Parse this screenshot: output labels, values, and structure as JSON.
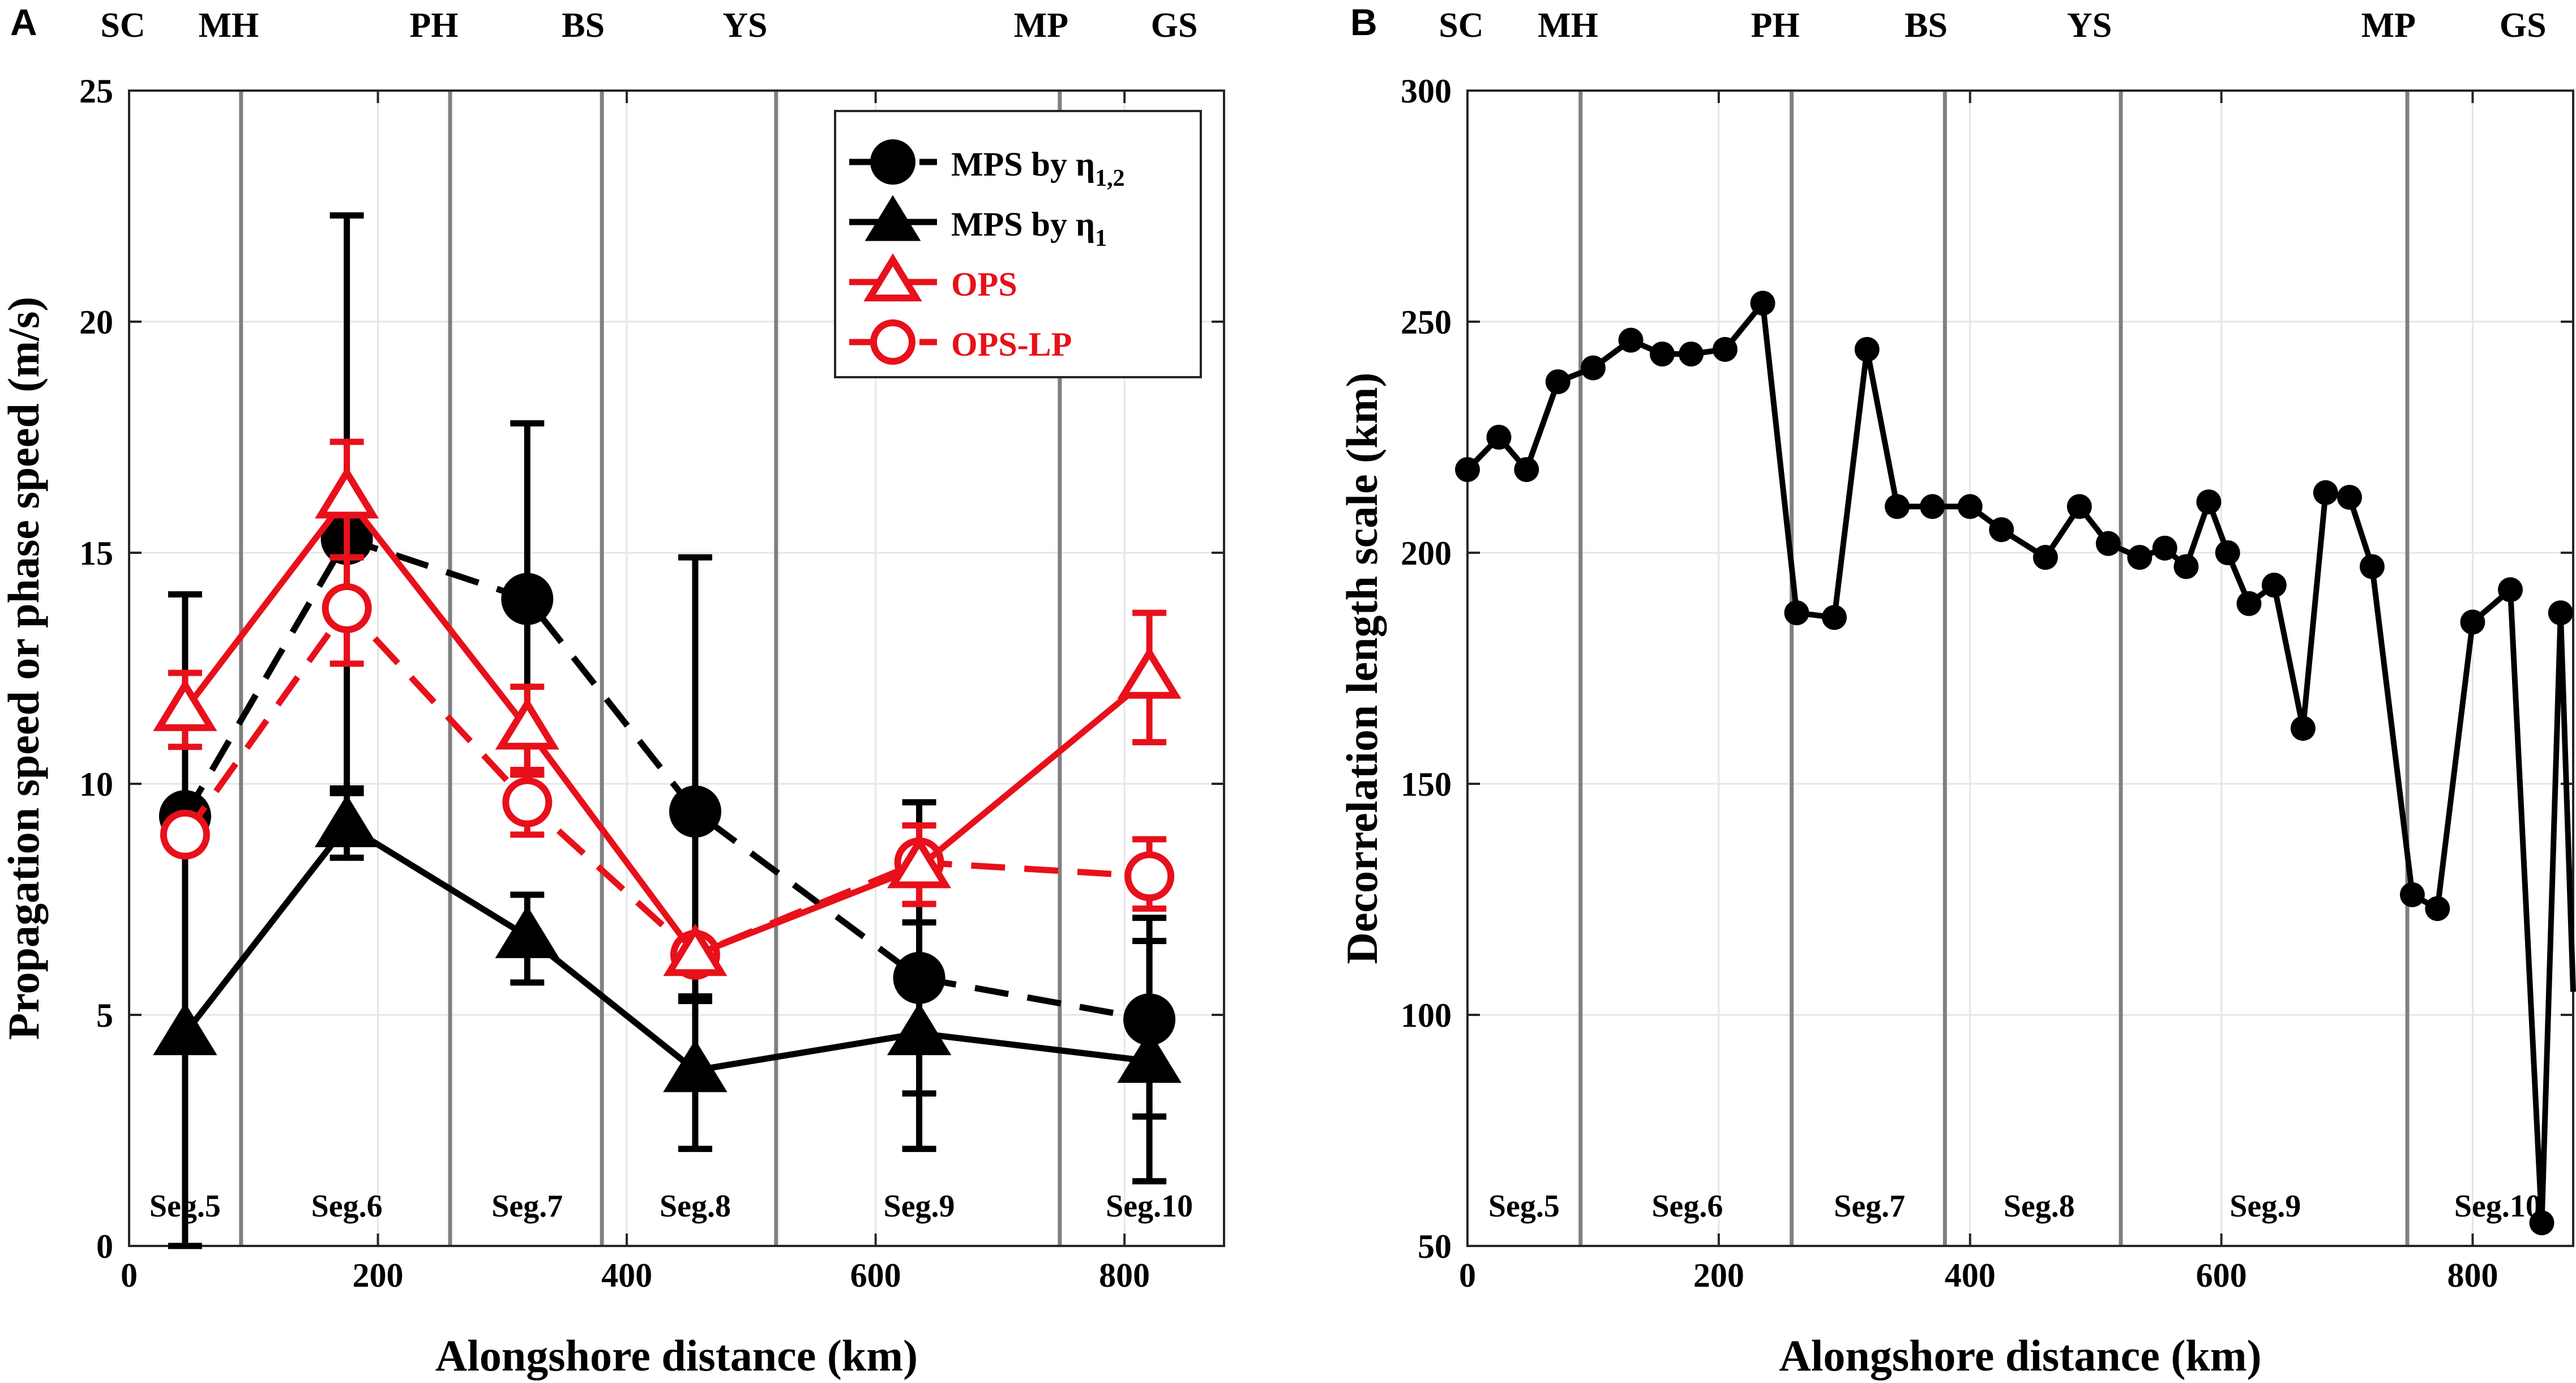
{
  "chart_data": [
    {
      "type": "line",
      "panel": "A",
      "xlabel": "Alongshore distance (km)",
      "ylabel": "Propagation speed or phase speed (m/s)",
      "xlim": [
        0,
        880
      ],
      "ylim": [
        0,
        25
      ],
      "xticks": [
        0,
        200,
        400,
        600,
        800
      ],
      "yticks": [
        0,
        5,
        10,
        15,
        20,
        25
      ],
      "grid": true,
      "legend_position": "top-right",
      "boundaries": [
        90,
        258,
        380,
        520,
        748
      ],
      "sites": [
        {
          "label": "SC",
          "x": -5
        },
        {
          "label": "MH",
          "x": 80
        },
        {
          "label": "PH",
          "x": 245
        },
        {
          "label": "BS",
          "x": 365
        },
        {
          "label": "YS",
          "x": 495
        },
        {
          "label": "MP",
          "x": 733
        },
        {
          "label": "GS",
          "x": 840
        }
      ],
      "segments": [
        {
          "label": "Seg.5",
          "x": 45
        },
        {
          "label": "Seg.6",
          "x": 175
        },
        {
          "label": "Seg.7",
          "x": 320
        },
        {
          "label": "Seg.8",
          "x": 455
        },
        {
          "label": "Seg.9",
          "x": 635
        },
        {
          "label": "Seg.10",
          "x": 820
        }
      ],
      "series": [
        {
          "name": "MPS by η1,2",
          "name_main": "MPS by η",
          "name_sub": "1,2",
          "color": "#000000",
          "line": "dashed",
          "marker": "circle",
          "fill": true,
          "x": [
            45,
            175,
            320,
            455,
            635,
            820
          ],
          "y": [
            9.3,
            15.3,
            14.0,
            9.4,
            5.8,
            4.9
          ],
          "err_low": [
            0.0,
            9.9,
            10.2,
            5.3,
            3.3,
            2.8
          ],
          "err_high": [
            14.1,
            22.3,
            17.8,
            14.9,
            9.6,
            7.1
          ]
        },
        {
          "name": "MPS by η1",
          "name_main": "MPS by η",
          "name_sub": "1",
          "color": "#000000",
          "line": "solid",
          "marker": "triangle",
          "fill": true,
          "x": [
            45,
            175,
            320,
            455,
            635,
            820
          ],
          "y": [
            4.6,
            9.1,
            6.7,
            3.8,
            4.6,
            4.0
          ],
          "err_low": [
            4.6,
            8.4,
            5.7,
            2.1,
            2.1,
            1.4
          ],
          "err_high": [
            4.6,
            9.8,
            7.6,
            5.4,
            7.0,
            6.6
          ]
        },
        {
          "name": "OPS",
          "color": "#e8101a",
          "line": "solid",
          "marker": "triangle",
          "fill": false,
          "x": [
            45,
            175,
            320,
            455,
            635,
            820
          ],
          "y": [
            11.6,
            16.2,
            11.2,
            6.3,
            8.2,
            12.3
          ],
          "err_low": [
            10.8,
            14.9,
            10.2,
            6.3,
            7.4,
            10.9
          ],
          "err_high": [
            12.4,
            17.4,
            12.1,
            6.3,
            9.1,
            13.7
          ]
        },
        {
          "name": "OPS-LP",
          "color": "#e8101a",
          "line": "dashed",
          "marker": "circle",
          "fill": false,
          "x": [
            45,
            175,
            320,
            455,
            635,
            820
          ],
          "y": [
            8.9,
            13.8,
            9.6,
            6.3,
            8.3,
            8.0
          ],
          "err_low": [
            8.9,
            12.6,
            8.9,
            6.3,
            7.4,
            7.3
          ],
          "err_high": [
            8.9,
            14.9,
            10.3,
            6.3,
            9.1,
            8.8
          ]
        }
      ]
    },
    {
      "type": "line",
      "panel": "B",
      "xlabel": "Alongshore distance (km)",
      "ylabel": "Decorrelation length scale (km)",
      "xlim": [
        0,
        880
      ],
      "ylim": [
        50,
        300
      ],
      "xticks": [
        0,
        200,
        400,
        600,
        800
      ],
      "yticks": [
        50,
        100,
        150,
        200,
        250,
        300
      ],
      "grid": true,
      "boundaries": [
        90,
        258,
        380,
        520,
        748
      ],
      "sites": [
        {
          "label": "SC",
          "x": -5
        },
        {
          "label": "MH",
          "x": 80
        },
        {
          "label": "PH",
          "x": 245
        },
        {
          "label": "BS",
          "x": 365
        },
        {
          "label": "YS",
          "x": 495
        },
        {
          "label": "MP",
          "x": 733
        },
        {
          "label": "GS",
          "x": 840
        }
      ],
      "segments": [
        {
          "label": "Seg.5",
          "x": 45
        },
        {
          "label": "Seg.6",
          "x": 175
        },
        {
          "label": "Seg.7",
          "x": 320
        },
        {
          "label": "Seg.8",
          "x": 455
        },
        {
          "label": "Seg.9",
          "x": 635
        },
        {
          "label": "Seg.10",
          "x": 820
        }
      ],
      "series": [
        {
          "name": "Decorrelation length scale",
          "color": "#000000",
          "line": "solid",
          "marker": "circle",
          "x": [
            0,
            25,
            47,
            72,
            100,
            130,
            155,
            178,
            205,
            235,
            262,
            292,
            318,
            342,
            370,
            400,
            425,
            460,
            487,
            510,
            535,
            555,
            572,
            590,
            605,
            622,
            642,
            665,
            683,
            702,
            720,
            752,
            772,
            800,
            830,
            855,
            870
          ],
          "y": [
            218,
            225,
            218,
            237,
            240,
            246,
            243,
            243,
            244,
            254,
            187,
            186,
            244,
            210,
            210,
            210,
            205,
            199,
            210,
            202,
            199,
            201,
            197,
            211,
            200,
            189,
            193,
            162,
            213,
            212,
            197,
            126,
            123,
            185,
            192,
            55,
            187
          ],
          "tail_y": 105
        }
      ]
    }
  ]
}
